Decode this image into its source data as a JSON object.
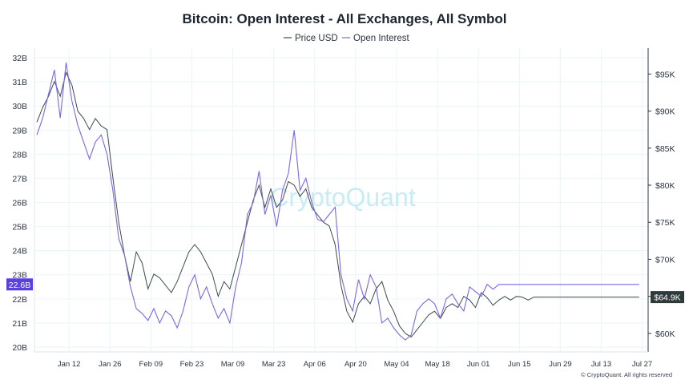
{
  "chart_data": {
    "type": "line",
    "title": "Bitcoin: Open Interest - All Exchanges, All Symbol",
    "watermark": "CryptoQuant",
    "copyright": "© CryptoQuant. All rights reserved",
    "colors": {
      "price": "#3d4a4a",
      "open_interest": "#7b66e8",
      "grid": "#e9f5f8",
      "axis": "#2b3440"
    },
    "x_labels": [
      "Jan 12",
      "Jan 26",
      "Feb 09",
      "Feb 23",
      "Mar 09",
      "Mar 23",
      "Apr 06",
      "Apr 20",
      "May 04",
      "May 18",
      "Jun 01",
      "Jun 15",
      "Jun 29",
      "Jul 13",
      "Jul 27"
    ],
    "y_left": {
      "ticks": [
        "32B",
        "31B",
        "30B",
        "29B",
        "28B",
        "27B",
        "26B",
        "25B",
        "24B",
        "23B",
        "22B",
        "21B",
        "20B"
      ],
      "range": [
        19.8,
        32.4
      ],
      "unit": "B"
    },
    "y_right": {
      "ticks": [
        "$95K",
        "$90K",
        "$85K",
        "$80K",
        "$75K",
        "$70K",
        "$65K",
        "$60K"
      ],
      "range": [
        57.5,
        98.5
      ],
      "unit": "K"
    },
    "current": {
      "open_interest_label": "22.6B",
      "open_interest_value": 22.6,
      "price_label": "$64.9K",
      "price_value": 64.9
    },
    "series": [
      {
        "name": "Price USD",
        "axis": "right",
        "day_offset": [
          0,
          2,
          4,
          6,
          8,
          10,
          12,
          14,
          16,
          18,
          20,
          22,
          24,
          26,
          28,
          30,
          32,
          34,
          36,
          38,
          40,
          42,
          44,
          46,
          48,
          50,
          52,
          54,
          56,
          58,
          60,
          62,
          64,
          66,
          68,
          70,
          72,
          74,
          76,
          78,
          80,
          82,
          84,
          86,
          88,
          90,
          92,
          94,
          96,
          98,
          100,
          102,
          104,
          106,
          108,
          110,
          112,
          114,
          116,
          118,
          120,
          122,
          124,
          126,
          128,
          130,
          132,
          134,
          136,
          138,
          140,
          142,
          144,
          146,
          148,
          150,
          152,
          154,
          156,
          158,
          160,
          162,
          164,
          166,
          168,
          170,
          172,
          174,
          176,
          178,
          180,
          182,
          184,
          186,
          188,
          190,
          192,
          194,
          196,
          198,
          200,
          202,
          204,
          206
        ],
        "values": [
          88.5,
          90.5,
          92.0,
          94.0,
          92.0,
          95.2,
          93.5,
          90.0,
          89.0,
          87.5,
          89.0,
          88.0,
          87.5,
          81.0,
          75.0,
          70.5,
          67.0,
          71.0,
          69.5,
          66.0,
          68.0,
          67.5,
          66.5,
          65.5,
          67.0,
          69.0,
          71.0,
          72.0,
          71.0,
          69.5,
          68.0,
          65.0,
          67.0,
          66.0,
          69.0,
          72.0,
          75.0,
          78.0,
          80.0,
          77.0,
          79.5,
          77.0,
          78.0,
          80.5,
          80.0,
          78.5,
          79.5,
          77.0,
          76.0,
          75.0,
          74.5,
          72.0,
          66.5,
          63.0,
          61.5,
          64.0,
          65.0,
          64.0,
          66.0,
          67.0,
          64.5,
          63.0,
          61.0,
          60.0,
          59.5,
          60.5,
          61.5,
          62.5,
          63.0,
          62.0,
          63.5,
          64.0,
          63.5,
          65.0,
          64.5,
          63.5,
          65.5,
          64.8,
          63.8,
          64.5,
          65.0,
          64.5,
          65.0,
          64.9,
          64.5,
          64.9,
          64.9,
          64.9,
          64.9,
          64.9,
          64.9,
          64.9,
          64.9,
          64.9,
          64.9,
          64.9,
          64.9,
          64.9,
          64.9,
          64.9,
          64.9,
          64.9,
          64.9,
          64.9
        ]
      },
      {
        "name": "Open Interest",
        "axis": "left",
        "day_offset": [
          0,
          2,
          4,
          6,
          8,
          10,
          12,
          14,
          16,
          18,
          20,
          22,
          24,
          26,
          28,
          30,
          32,
          34,
          36,
          38,
          40,
          42,
          44,
          46,
          48,
          50,
          52,
          54,
          56,
          58,
          60,
          62,
          64,
          66,
          68,
          70,
          72,
          74,
          76,
          78,
          80,
          82,
          84,
          86,
          88,
          90,
          92,
          94,
          96,
          98,
          100,
          102,
          104,
          106,
          108,
          110,
          112,
          114,
          116,
          118,
          120,
          122,
          124,
          126,
          128,
          130,
          132,
          134,
          136,
          138,
          140,
          142,
          144,
          146,
          148,
          150,
          152,
          154,
          156,
          158,
          160,
          162,
          164,
          166,
          168,
          170,
          172,
          174,
          176,
          178,
          180,
          182,
          184,
          186,
          188,
          190,
          192,
          194,
          196,
          198,
          200,
          202,
          204,
          206
        ],
        "values": [
          28.8,
          29.5,
          30.5,
          31.5,
          29.5,
          31.8,
          30.2,
          29.2,
          28.5,
          27.8,
          28.5,
          28.8,
          28.0,
          26.5,
          24.5,
          23.8,
          22.5,
          21.6,
          21.4,
          21.1,
          21.6,
          21.0,
          21.5,
          21.3,
          20.8,
          21.5,
          22.5,
          23.0,
          22.0,
          22.5,
          21.8,
          21.2,
          21.6,
          21.0,
          22.5,
          23.5,
          25.5,
          26.0,
          27.3,
          25.5,
          26.3,
          25.0,
          26.5,
          27.2,
          29.0,
          26.5,
          27.0,
          26.0,
          25.3,
          25.2,
          25.5,
          25.8,
          23.0,
          22.0,
          21.5,
          22.8,
          22.0,
          23.0,
          22.5,
          21.0,
          21.2,
          20.8,
          20.5,
          20.3,
          20.5,
          21.5,
          21.8,
          22.0,
          21.8,
          21.2,
          22.0,
          22.2,
          21.8,
          21.5,
          22.5,
          22.3,
          22.1,
          22.6,
          22.4,
          22.6,
          22.6,
          22.6,
          22.6,
          22.6,
          22.6,
          22.6,
          22.6,
          22.6,
          22.6,
          22.6,
          22.6,
          22.6,
          22.6,
          22.6,
          22.6,
          22.6,
          22.6,
          22.6,
          22.6,
          22.6,
          22.6,
          22.6,
          22.6,
          22.6
        ]
      }
    ]
  }
}
